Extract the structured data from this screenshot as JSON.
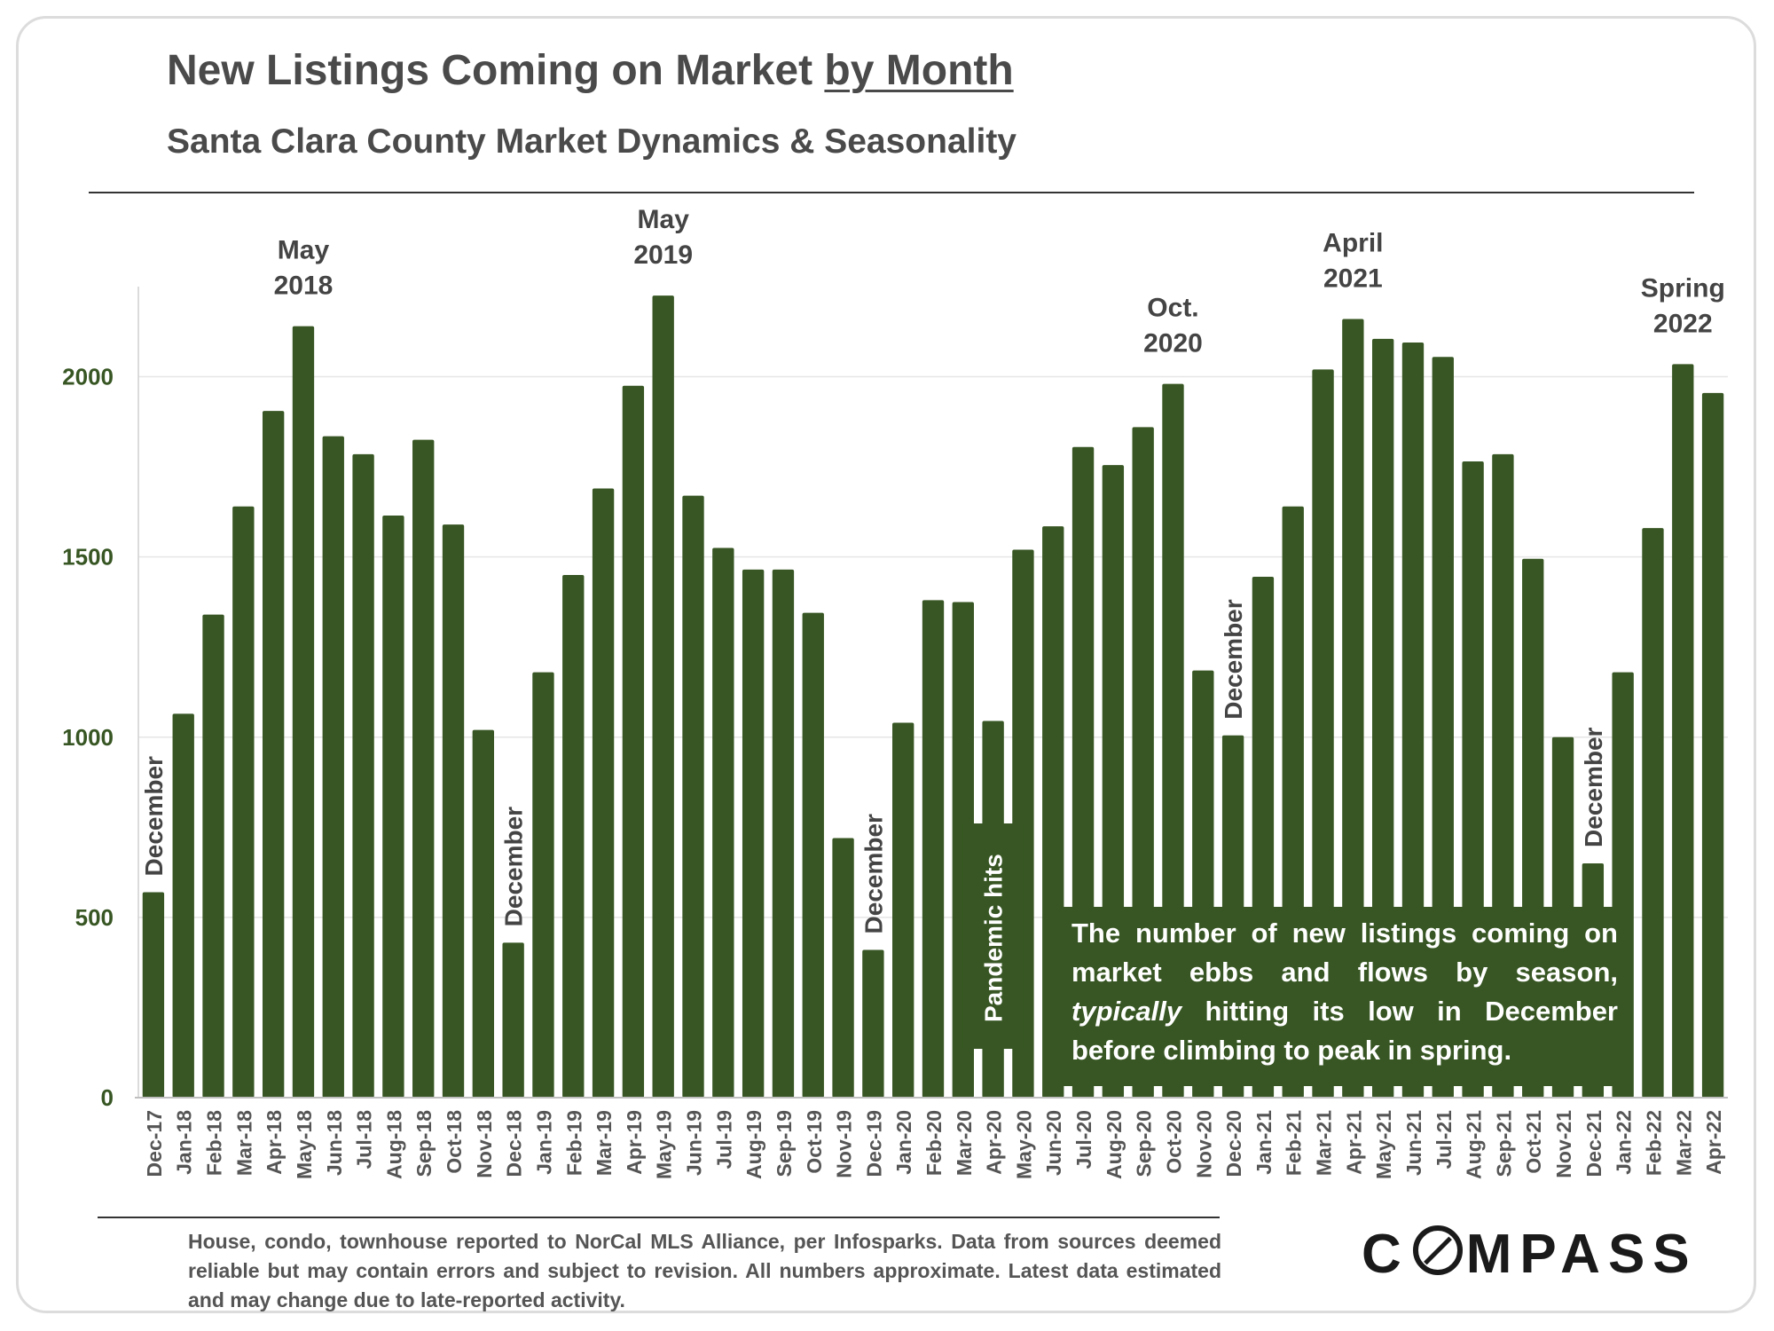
{
  "header": {
    "title_main": "New Listings Coming on Market ",
    "title_underlined": "by Month",
    "subtitle": "Santa Clara County Market Dynamics & Seasonality"
  },
  "chart_data": {
    "type": "bar",
    "title": "New Listings Coming on Market by Month",
    "subtitle": "Santa Clara County Market Dynamics & Seasonality",
    "xlabel": "",
    "ylabel": "",
    "ylim": [
      0,
      2250
    ],
    "yticks": [
      0,
      500,
      1000,
      1500,
      2000
    ],
    "grid": true,
    "bar_color": "#375623",
    "categories": [
      "Dec-17",
      "Jan-18",
      "Feb-18",
      "Mar-18",
      "Apr-18",
      "May-18",
      "Jun-18",
      "Jul-18",
      "Aug-18",
      "Sep-18",
      "Oct-18",
      "Nov-18",
      "Dec-18",
      "Jan-19",
      "Feb-19",
      "Mar-19",
      "Apr-19",
      "May-19",
      "Jun-19",
      "Jul-19",
      "Aug-19",
      "Sep-19",
      "Oct-19",
      "Nov-19",
      "Dec-19",
      "Jan-20",
      "Feb-20",
      "Mar-20",
      "Apr-20",
      "May-20",
      "Jun-20",
      "Jul-20",
      "Aug-20",
      "Sep-20",
      "Oct-20",
      "Nov-20",
      "Dec-20",
      "Jan-21",
      "Feb-21",
      "Mar-21",
      "Apr-21",
      "May-21",
      "Jun-21",
      "Jul-21",
      "Aug-21",
      "Sep-21",
      "Oct-21",
      "Nov-21",
      "Dec-21",
      "Jan-22",
      "Feb-22",
      "Mar-22",
      "Apr-22"
    ],
    "values": [
      570,
      1065,
      1340,
      1640,
      1905,
      2140,
      1835,
      1785,
      1615,
      1825,
      1590,
      1020,
      430,
      1180,
      1450,
      1690,
      1975,
      2225,
      1670,
      1525,
      1465,
      1465,
      1345,
      720,
      410,
      1040,
      1380,
      1375,
      1045,
      1520,
      1585,
      1805,
      1755,
      1860,
      1980,
      1185,
      1005,
      1445,
      1640,
      2020,
      2160,
      2105,
      2095,
      2055,
      1765,
      1785,
      1495,
      1000,
      650,
      1180,
      1580,
      2035,
      1955
    ],
    "annotations": [
      {
        "index": 5,
        "lines": [
          "May",
          "2018"
        ],
        "kind": "peak"
      },
      {
        "index": 17,
        "lines": [
          "May",
          "2019"
        ],
        "kind": "peak"
      },
      {
        "index": 34,
        "lines": [
          "Oct.",
          "2020"
        ],
        "kind": "peak"
      },
      {
        "index": 40,
        "lines": [
          "April",
          "2021"
        ],
        "kind": "peak"
      },
      {
        "index": 51,
        "lines": [
          "Spring",
          "2022"
        ],
        "kind": "peak"
      },
      {
        "index": 0,
        "text": "December",
        "kind": "vertical"
      },
      {
        "index": 12,
        "text": "December",
        "kind": "vertical"
      },
      {
        "index": 24,
        "text": "December",
        "kind": "vertical"
      },
      {
        "index": 36,
        "text": "December",
        "kind": "vertical"
      },
      {
        "index": 48,
        "text": "December",
        "kind": "vertical"
      },
      {
        "index": 28,
        "text": "Pandemic hits",
        "kind": "inset"
      }
    ]
  },
  "note": {
    "line1": "The number of new listings coming on market ebbs and flows by season, ",
    "emphasis": "typically",
    "line2": " hitting its low in December before climbing to peak in spring."
  },
  "footer": {
    "text": "House, condo, townhouse reported to NorCal MLS Alliance, per Infosparks. Data from sources deemed reliable but may contain errors and subject to revision. All numbers approximate. Latest data estimated and may change due to late-reported activity."
  },
  "logo": {
    "pre": "C",
    "post": "MPASS"
  }
}
